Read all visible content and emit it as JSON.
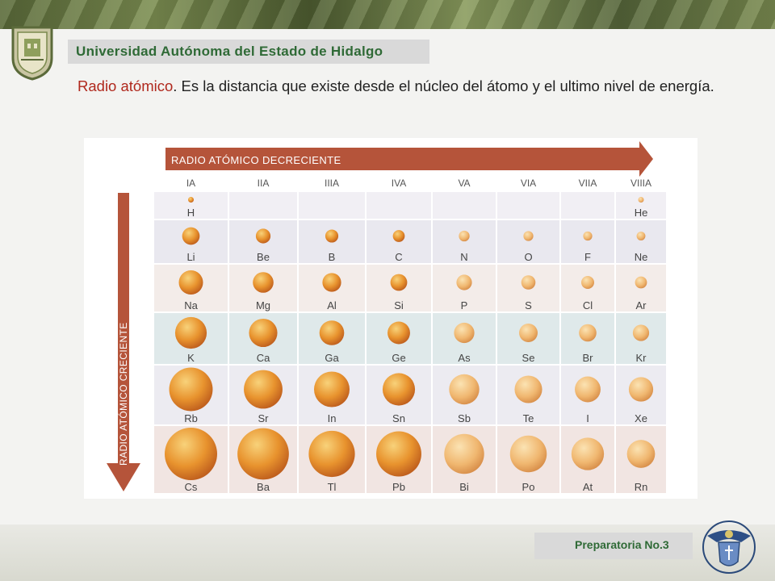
{
  "header": {
    "university": "Universidad Autónoma del Estado de Hidalgo"
  },
  "description": {
    "term": "Radio atómico",
    "text": ". Es la distancia que existe desde el núcleo del átomo y el ultimo nivel de energía."
  },
  "figure": {
    "horizontal_arrow_label": "RADIO ATÓMICO DECRECIENTE",
    "vertical_arrow_label": "RADIO ATÓMICO CRECIENTE",
    "groups": [
      "IA",
      "IIA",
      "IIIA",
      "IVA",
      "VA",
      "VIA",
      "VIIA",
      "VIIIA"
    ],
    "rows": [
      [
        {
          "symbol": "H",
          "radius": 0.3
        },
        null,
        null,
        null,
        null,
        null,
        null,
        {
          "symbol": "He",
          "radius": 0.2
        }
      ],
      [
        {
          "symbol": "Li",
          "radius": 0.62
        },
        {
          "symbol": "Be",
          "radius": 0.52
        },
        {
          "symbol": "B",
          "radius": 0.46
        },
        {
          "symbol": "C",
          "radius": 0.42
        },
        {
          "symbol": "N",
          "radius": 0.38
        },
        {
          "symbol": "O",
          "radius": 0.35
        },
        {
          "symbol": "F",
          "radius": 0.32
        },
        {
          "symbol": "Ne",
          "radius": 0.31
        }
      ],
      [
        {
          "symbol": "Na",
          "radius": 0.75
        },
        {
          "symbol": "Mg",
          "radius": 0.64
        },
        {
          "symbol": "Al",
          "radius": 0.58
        },
        {
          "symbol": "Si",
          "radius": 0.52
        },
        {
          "symbol": "P",
          "radius": 0.48
        },
        {
          "symbol": "S",
          "radius": 0.44
        },
        {
          "symbol": "Cl",
          "radius": 0.4
        },
        {
          "symbol": "Ar",
          "radius": 0.37
        }
      ],
      [
        {
          "symbol": "K",
          "radius": 0.87
        },
        {
          "symbol": "Ca",
          "radius": 0.78
        },
        {
          "symbol": "Ga",
          "radius": 0.68
        },
        {
          "symbol": "Ge",
          "radius": 0.62
        },
        {
          "symbol": "As",
          "radius": 0.56
        },
        {
          "symbol": "Se",
          "radius": 0.51
        },
        {
          "symbol": "Br",
          "radius": 0.48
        },
        {
          "symbol": "Kr",
          "radius": 0.45
        }
      ],
      [
        {
          "symbol": "Rb",
          "radius": 0.98
        },
        {
          "symbol": "Sr",
          "radius": 0.87
        },
        {
          "symbol": "In",
          "radius": 0.8
        },
        {
          "symbol": "Sn",
          "radius": 0.73
        },
        {
          "symbol": "Sb",
          "radius": 0.68
        },
        {
          "symbol": "Te",
          "radius": 0.62
        },
        {
          "symbol": "I",
          "radius": 0.58
        },
        {
          "symbol": "Xe",
          "radius": 0.55
        }
      ],
      [
        {
          "symbol": "Cs",
          "radius": 1.0
        },
        {
          "symbol": "Ba",
          "radius": 0.98
        },
        {
          "symbol": "Tl",
          "radius": 0.88
        },
        {
          "symbol": "Pb",
          "radius": 0.86
        },
        {
          "symbol": "Bi",
          "radius": 0.76
        },
        {
          "symbol": "Po",
          "radius": 0.7
        },
        {
          "symbol": "At",
          "radius": 0.62
        },
        {
          "symbol": "Rn",
          "radius": 0.56
        }
      ]
    ],
    "colors": {
      "arrow": "#b5543a",
      "row_tints": [
        "#f1eff4",
        "#e9e8ef",
        "#f3ece9",
        "#dfe9ea",
        "#ecebf1",
        "#f1e5e2"
      ],
      "sphere_light": "#f6c66a",
      "sphere_mid": "#e6902c",
      "sphere_dark": "#b8561a"
    }
  },
  "footer": {
    "school": "Preparatoria No.3"
  }
}
